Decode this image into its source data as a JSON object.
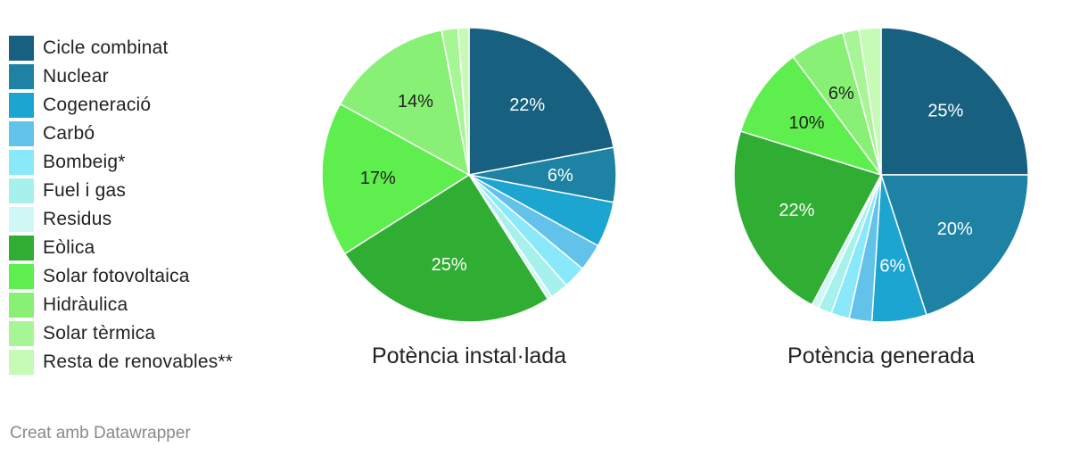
{
  "legend": [
    {
      "label": "Cicle combinat",
      "color": "#176080"
    },
    {
      "label": "Nuclear",
      "color": "#1d82a3"
    },
    {
      "label": "Cogeneració",
      "color": "#1ca5d1"
    },
    {
      "label": "Carbó",
      "color": "#63c2e9"
    },
    {
      "label": "Bombeig*",
      "color": "#8ae8fb"
    },
    {
      "label": "Fuel i gas",
      "color": "#a6f1ec"
    },
    {
      "label": "Residus",
      "color": "#cff8f6"
    },
    {
      "label": "Eòlica",
      "color": "#2fae33"
    },
    {
      "label": "Solar fotovoltaica",
      "color": "#5eee4d"
    },
    {
      "label": "Hidràulica",
      "color": "#88f175"
    },
    {
      "label": "Solar tèrmica",
      "color": "#a7f695"
    },
    {
      "label": "Resta de renovables**",
      "color": "#c5fbb4"
    }
  ],
  "chart_data": [
    {
      "type": "pie",
      "title": "Potència instal·lada",
      "categories": [
        "Cicle combinat",
        "Nuclear",
        "Cogeneració",
        "Carbó",
        "Bombeig*",
        "Fuel i gas",
        "Residus",
        "Eòlica",
        "Solar fotovoltaica",
        "Hidràulica",
        "Solar tèrmica",
        "Resta de renovables**"
      ],
      "values": [
        22,
        6,
        5,
        3,
        2.5,
        2,
        0.5,
        25,
        17,
        14,
        1.8,
        1.2
      ],
      "labels": [
        "22%",
        "6%",
        "",
        "",
        "",
        "",
        "",
        "25%",
        "17%",
        "14%",
        "",
        ""
      ]
    },
    {
      "type": "pie",
      "title": "Potència generada",
      "categories": [
        "Cicle combinat",
        "Nuclear",
        "Cogeneració",
        "Carbó",
        "Bombeig*",
        "Fuel i gas",
        "Residus",
        "Eòlica",
        "Solar fotovoltaica",
        "Hidràulica",
        "Solar tèrmica",
        "Resta de renovables**"
      ],
      "values": [
        25,
        20,
        6,
        2.5,
        2,
        1.5,
        0.8,
        22,
        10,
        6,
        1.8,
        2.4
      ],
      "labels": [
        "25%",
        "20%",
        "6%",
        "",
        "",
        "",
        "",
        "22%",
        "10%",
        "6%",
        "",
        ""
      ]
    }
  ],
  "footer": "Creat amb Datawrapper"
}
